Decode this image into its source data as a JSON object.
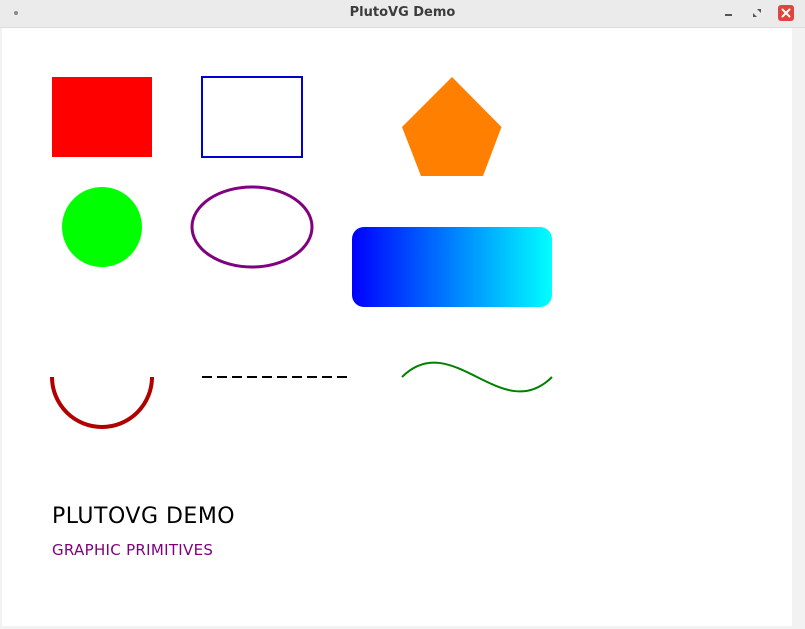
{
  "window": {
    "title": "PlutoVG Demo"
  },
  "canvas": {
    "heading": "PLUTOVG DEMO",
    "subheading": "GRAPHIC PRIMITIVES"
  },
  "colors": {
    "filled_rect": "#ff0000",
    "stroked_rect": "#0000cc",
    "pentagon": "#ff8000",
    "circle": "#00ff00",
    "ellipse": "#800080",
    "gradient_start": "#0000ff",
    "gradient_end": "#00ffff",
    "arc": "#b00000",
    "dashed_line": "#000000",
    "wave": "#008000",
    "heading": "#000000",
    "subheading": "#800080",
    "close_button": "#e2433c"
  },
  "icons": {
    "window_menu": "menu-dot-icon",
    "minimize": "minimize-icon",
    "maximize": "maximize-icon",
    "close": "close-icon"
  }
}
